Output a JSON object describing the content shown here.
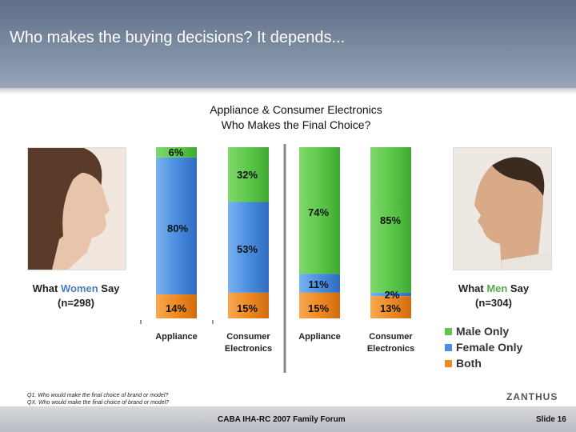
{
  "header": {
    "title": "Who makes the buying decisions? It depends..."
  },
  "women": {
    "prefix": "What ",
    "highlight": "Women",
    "suffix": " Say",
    "n": "(n=298)"
  },
  "men": {
    "prefix": "What ",
    "highlight": "Men",
    "suffix": " Say",
    "n": "(n=304)"
  },
  "legend": {
    "items": [
      {
        "label": "Male Only",
        "color": "#5cc84a"
      },
      {
        "label": "Female Only",
        "color": "#4a8ee0"
      },
      {
        "label": "Both",
        "color": "#ee8a22"
      }
    ]
  },
  "chart_data": {
    "type": "bar",
    "stacked": true,
    "title_line1": "Appliance & Consumer Electronics",
    "title_line2": "Who Makes the Final Choice?",
    "categories": [
      "Appliance",
      "Consumer Electronics",
      "Appliance",
      "Consumer Electronics"
    ],
    "groups": [
      "What Women Say",
      "What Men Say"
    ],
    "series": [
      {
        "name": "Male Only",
        "color": "#5cc84a",
        "values": [
          6,
          32,
          74,
          85
        ]
      },
      {
        "name": "Female Only",
        "color": "#4a8ee0",
        "values": [
          80,
          53,
          11,
          2
        ]
      },
      {
        "name": "Both",
        "color": "#ee8a22",
        "values": [
          14,
          15,
          15,
          13
        ]
      }
    ],
    "ylim": [
      0,
      100
    ]
  },
  "footnote": {
    "line1": "Q1. Who would make the final choice of brand or model?",
    "line2": "QX. Who would make the final choice of brand or model?"
  },
  "footer": {
    "text": "CABA IHA-RC 2007 Family Forum",
    "slide": "Slide 16"
  },
  "logo": {
    "text": "ZANTHUS"
  }
}
